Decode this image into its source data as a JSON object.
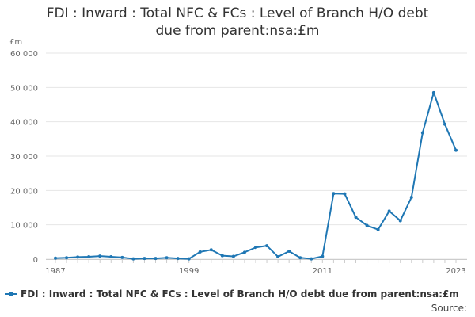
{
  "colors": {
    "series": "#1f77b4",
    "grid": "#e6e6e6",
    "axis": "#cccccc",
    "text": "#333333"
  },
  "chart_data": {
    "type": "line",
    "title_line1": "FDI : Inward : Total NFC & FCs : Level of Branch H/O debt",
    "title_line2": "due from parent:nsa:£m",
    "y_unit": "£m",
    "ylim": [
      0,
      60000
    ],
    "y_ticks": [
      0,
      10000,
      20000,
      30000,
      40000,
      50000,
      60000
    ],
    "y_tick_labels": [
      "0",
      "10 000",
      "20 000",
      "30 000",
      "40 000",
      "50 000",
      "60 000"
    ],
    "xlim": [
      1987,
      2023
    ],
    "x_tick_labels": [
      1987,
      1999,
      2011,
      2023
    ],
    "grid": true,
    "legend_position": "bottom",
    "series": [
      {
        "name": "FDI : Inward : Total NFC & FCs : Level of Branch H/O debt due from parent:nsa:£m",
        "x": [
          1987,
          1988,
          1989,
          1990,
          1991,
          1992,
          1993,
          1994,
          1995,
          1996,
          1997,
          1998,
          1999,
          2000,
          2001,
          2002,
          2003,
          2004,
          2005,
          2006,
          2007,
          2008,
          2009,
          2010,
          2011,
          2012,
          2013,
          2014,
          2015,
          2016,
          2017,
          2018,
          2019,
          2020,
          2021,
          2022,
          2023
        ],
        "values": [
          300,
          400,
          600,
          700,
          900,
          700,
          500,
          100,
          200,
          200,
          400,
          200,
          100,
          2100,
          2700,
          1000,
          800,
          2000,
          3400,
          3900,
          700,
          2300,
          400,
          100,
          800,
          19100,
          19000,
          12200,
          9800,
          8600,
          14000,
          11200,
          18000,
          36800,
          48500,
          39300,
          31700
        ]
      }
    ],
    "source_label": "Source:"
  }
}
